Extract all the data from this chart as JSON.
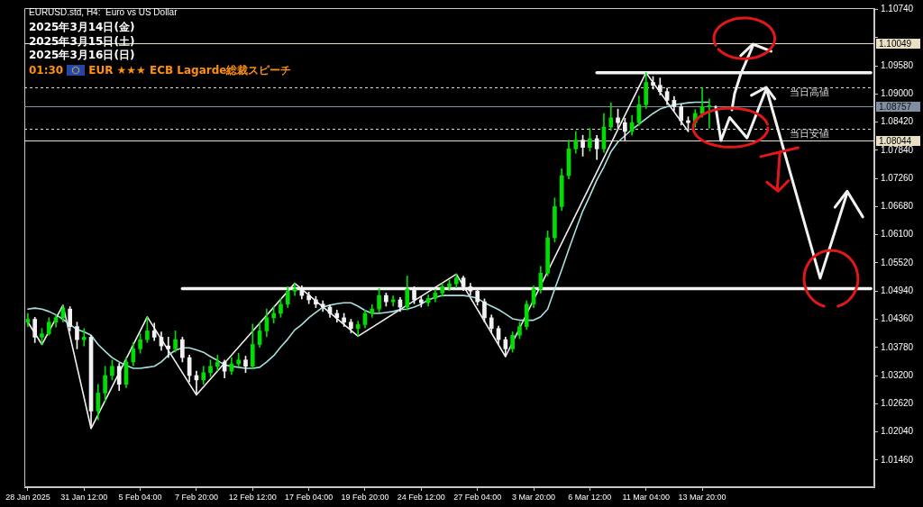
{
  "chart_data": {
    "type": "candlestick",
    "title": "EURUSD.std, H4:  Euro vs US Dollar",
    "annotations": [
      "2025年3月14日(金)",
      "2025年3月15日(土)",
      "2025年3月16日(日)",
      "01:30",
      "EUR ★★★ ECB Lagarde総裁スピーチ"
    ],
    "categories": [
      "28 Jan 2025",
      null,
      null,
      null,
      null,
      null,
      null,
      null,
      "31 Jan 12:00",
      null,
      null,
      null,
      null,
      null,
      null,
      null,
      "5 Feb 04:00",
      null,
      null,
      null,
      null,
      null,
      null,
      null,
      "7 Feb 20:00",
      null,
      null,
      null,
      null,
      null,
      null,
      null,
      "12 Feb 12:00",
      null,
      null,
      null,
      null,
      null,
      null,
      null,
      "17 Feb 04:00",
      null,
      null,
      null,
      null,
      null,
      null,
      null,
      "19 Feb 20:00",
      null,
      null,
      null,
      null,
      null,
      null,
      null,
      "24 Feb 12:00",
      null,
      null,
      null,
      null,
      null,
      null,
      null,
      "27 Feb 04:00",
      null,
      null,
      null,
      null,
      null,
      null,
      null,
      "3 Mar 20:00",
      null,
      null,
      null,
      null,
      null,
      null,
      null,
      "6 Mar 12:00",
      null,
      null,
      null,
      null,
      null,
      null,
      null,
      "11 Mar 04:00",
      null,
      null,
      null,
      null,
      null,
      null,
      null,
      "13 Mar 20:00",
      null,
      null,
      null,
      null,
      null,
      null,
      null,
      null,
      null,
      null,
      null,
      null,
      null,
      null,
      null,
      null,
      null,
      null,
      null,
      null,
      null,
      null,
      null,
      null
    ],
    "colors": [
      "#00dd00",
      "#f2f2f2",
      "#00dd00",
      "#00dd00",
      "#00dd00",
      "#00dd00",
      "#f2f2f2",
      "#f2f2f2",
      "#00dd00",
      "#f2f2f2",
      "#00dd00",
      "#00dd00",
      "#00dd00",
      "#f2f2f2",
      "#00dd00",
      "#00dd00",
      "#00dd00",
      "#00dd00",
      "#f2f2f2",
      "#f2f2f2",
      "#f2f2f2",
      "#00dd00",
      "#f2f2f2",
      "#f2f2f2",
      "#f2f2f2",
      "#00dd00",
      "#00dd00",
      "#00dd00",
      "#f2f2f2",
      "#00dd00",
      "#00dd00",
      "#f2f2f2",
      "#00dd00",
      "#00dd00",
      "#00dd00",
      "#00dd00",
      "#00dd00",
      "#00dd00",
      "#00dd00",
      "#f2f2f2",
      "#f2f2f2",
      "#f2f2f2",
      "#f2f2f2",
      "#f2f2f2",
      "#f2f2f2",
      "#f2f2f2",
      "#f2f2f2",
      "#00dd00",
      "#00dd00",
      "#00dd00",
      "#00dd00",
      "#f2f2f2",
      "#00dd00",
      "#f2f2f2",
      "#00dd00",
      "#f2f2f2",
      "#f2f2f2",
      "#00dd00",
      "#00dd00",
      "#00dd00",
      "#00dd00",
      "#00dd00",
      "#f2f2f2",
      "#f2f2f2",
      "#f2f2f2",
      "#f2f2f2",
      "#f2f2f2",
      "#f2f2f2",
      "#f2f2f2",
      "#00dd00",
      "#00dd00",
      "#00dd00",
      "#00dd00",
      "#00dd00",
      "#00dd00",
      "#00dd00",
      "#00dd00",
      "#00dd00",
      "#00dd00",
      "#f2f2f2",
      "#00dd00",
      "#f2f2f2",
      "#00dd00",
      "#00dd00",
      "#f2f2f2",
      "#f2f2f2",
      "#00dd00",
      "#00dd00",
      "#00dd00",
      "#f2f2f2",
      "#f2f2f2",
      "#f2f2f2",
      "#f2f2f2",
      "#f2f2f2",
      "#f2f2f2",
      "#00dd00",
      "#00dd00",
      "#00dd00",
      null,
      null,
      null,
      null,
      null,
      null,
      null,
      null,
      null,
      null,
      null,
      null,
      null,
      null,
      null,
      null,
      null,
      null,
      null,
      null,
      null,
      null,
      null
    ],
    "ohlc": [
      [
        1.043,
        1.0448,
        1.0421,
        1.0436
      ],
      [
        1.0436,
        1.044,
        1.0388,
        1.0399
      ],
      [
        1.0399,
        1.0417,
        1.0384,
        1.0406
      ],
      [
        1.0406,
        1.0439,
        1.0403,
        1.043
      ],
      [
        1.043,
        1.0445,
        1.042,
        1.0439
      ],
      [
        1.0439,
        1.0465,
        1.043,
        1.0457
      ],
      [
        1.0457,
        1.0462,
        1.0412,
        1.0421
      ],
      [
        1.0421,
        1.043,
        1.0375,
        1.0394
      ],
      [
        1.0394,
        1.0417,
        1.0381,
        1.0399
      ],
      [
        1.0399,
        1.0403,
        1.0211,
        1.0247
      ],
      [
        1.0247,
        1.0302,
        1.0229,
        1.0284
      ],
      [
        1.0284,
        1.0339,
        1.0266,
        1.032
      ],
      [
        1.032,
        1.0352,
        1.0311,
        1.0339
      ],
      [
        1.0339,
        1.0345,
        1.0289,
        1.0302
      ],
      [
        1.0302,
        1.0357,
        1.0295,
        1.0348
      ],
      [
        1.0348,
        1.0388,
        1.034,
        1.0375
      ],
      [
        1.0375,
        1.0406,
        1.0366,
        1.0394
      ],
      [
        1.0394,
        1.0441,
        1.0388,
        1.0412
      ],
      [
        1.0412,
        1.0428,
        1.0392,
        1.0399
      ],
      [
        1.0399,
        1.041,
        1.0372,
        1.0381
      ],
      [
        1.0381,
        1.0399,
        1.0357,
        1.0375
      ],
      [
        1.0375,
        1.0412,
        1.0368,
        1.0394
      ],
      [
        1.0394,
        1.0399,
        1.0348,
        1.0357
      ],
      [
        1.0357,
        1.0362,
        1.0307,
        1.032
      ],
      [
        1.032,
        1.0329,
        1.028,
        1.0311
      ],
      [
        1.0311,
        1.0339,
        1.0302,
        1.0326
      ],
      [
        1.0326,
        1.0352,
        1.0318,
        1.0339
      ],
      [
        1.0339,
        1.0362,
        1.033,
        1.0348
      ],
      [
        1.0348,
        1.0352,
        1.0315,
        1.0329
      ],
      [
        1.0329,
        1.0357,
        1.0322,
        1.0344
      ],
      [
        1.0344,
        1.0366,
        1.0338,
        1.0352
      ],
      [
        1.0352,
        1.036,
        1.0326,
        1.0339
      ],
      [
        1.0339,
        1.0426,
        1.0335,
        1.0384
      ],
      [
        1.0384,
        1.043,
        1.0378,
        1.0412
      ],
      [
        1.0412,
        1.0457,
        1.04,
        1.0439
      ],
      [
        1.0439,
        1.0463,
        1.0428,
        1.0448
      ],
      [
        1.0448,
        1.0479,
        1.044,
        1.0467
      ],
      [
        1.0467,
        1.0503,
        1.046,
        1.0494
      ],
      [
        1.0494,
        1.051,
        1.0485,
        1.0498
      ],
      [
        1.0498,
        1.0505,
        1.0478,
        1.0485
      ],
      [
        1.0485,
        1.0492,
        1.0468,
        1.0476
      ],
      [
        1.0476,
        1.0483,
        1.046,
        1.0467
      ],
      [
        1.0467,
        1.0474,
        1.0452,
        1.0461
      ],
      [
        1.0461,
        1.0466,
        1.044,
        1.0448
      ],
      [
        1.0448,
        1.0455,
        1.043,
        1.0439
      ],
      [
        1.0439,
        1.0448,
        1.0421,
        1.043
      ],
      [
        1.043,
        1.0436,
        1.0408,
        1.0417
      ],
      [
        1.0417,
        1.0432,
        1.0401,
        1.0425
      ],
      [
        1.0425,
        1.0455,
        1.0418,
        1.0448
      ],
      [
        1.0448,
        1.0466,
        1.044,
        1.0457
      ],
      [
        1.0457,
        1.0499,
        1.045,
        1.0485
      ],
      [
        1.0485,
        1.049,
        1.0463,
        1.0472
      ],
      [
        1.0472,
        1.0484,
        1.0463,
        1.0476
      ],
      [
        1.0476,
        1.0481,
        1.0452,
        1.0461
      ],
      [
        1.0461,
        1.0525,
        1.0455,
        1.0498
      ],
      [
        1.0498,
        1.0503,
        1.0468,
        1.0476
      ],
      [
        1.0476,
        1.0483,
        1.0461,
        1.047
      ],
      [
        1.047,
        1.0486,
        1.0463,
        1.0479
      ],
      [
        1.0479,
        1.0497,
        1.0472,
        1.049
      ],
      [
        1.049,
        1.051,
        1.0483,
        1.0503
      ],
      [
        1.0503,
        1.0517,
        1.0495,
        1.0509
      ],
      [
        1.0509,
        1.0529,
        1.0501,
        1.0521
      ],
      [
        1.0521,
        1.0525,
        1.0495,
        1.0503
      ],
      [
        1.0503,
        1.051,
        1.0486,
        1.0494
      ],
      [
        1.0494,
        1.0499,
        1.0465,
        1.0472
      ],
      [
        1.0472,
        1.0478,
        1.043,
        1.0439
      ],
      [
        1.0439,
        1.0445,
        1.0408,
        1.0417
      ],
      [
        1.0417,
        1.0422,
        1.0385,
        1.0394
      ],
      [
        1.0394,
        1.0399,
        1.0359,
        1.0375
      ],
      [
        1.0375,
        1.041,
        1.0368,
        1.0403
      ],
      [
        1.0403,
        1.043,
        1.0396,
        1.0421
      ],
      [
        1.0421,
        1.0474,
        1.0415,
        1.0467
      ],
      [
        1.0467,
        1.0505,
        1.046,
        1.0498
      ],
      [
        1.0498,
        1.0545,
        1.049,
        1.0531
      ],
      [
        1.0531,
        1.0618,
        1.0525,
        1.0604
      ],
      [
        1.0604,
        1.0686,
        1.0595,
        1.0668
      ],
      [
        1.0668,
        1.0746,
        1.066,
        1.0732
      ],
      [
        1.0732,
        1.0805,
        1.0725,
        1.0787
      ],
      [
        1.0787,
        1.0823,
        1.0778,
        1.0805
      ],
      [
        1.0805,
        1.0815,
        1.0772,
        1.079
      ],
      [
        1.079,
        1.0829,
        1.0782,
        1.0808
      ],
      [
        1.0808,
        1.0815,
        1.0765,
        1.0787
      ],
      [
        1.0787,
        1.086,
        1.078,
        1.0832
      ],
      [
        1.0832,
        1.0882,
        1.0825,
        1.0851
      ],
      [
        1.0851,
        1.0869,
        1.083,
        1.0841
      ],
      [
        1.0841,
        1.085,
        1.0805,
        1.0823
      ],
      [
        1.0823,
        1.0856,
        1.0815,
        1.0841
      ],
      [
        1.0841,
        1.0896,
        1.0835,
        1.0878
      ],
      [
        1.0878,
        1.0944,
        1.087,
        1.0924
      ],
      [
        1.0924,
        1.0936,
        1.091,
        1.0918
      ],
      [
        1.0918,
        1.0933,
        1.0898,
        1.0905
      ],
      [
        1.0905,
        1.0912,
        1.0878,
        1.0887
      ],
      [
        1.0887,
        1.0895,
        1.0865,
        1.0874
      ],
      [
        1.0874,
        1.088,
        1.0836,
        1.0845
      ],
      [
        1.0845,
        1.0853,
        1.0823,
        1.0841
      ],
      [
        1.0841,
        1.0868,
        1.0832,
        1.086
      ],
      [
        1.086,
        1.0913,
        1.0852,
        1.0874
      ],
      [
        1.0874,
        1.089,
        1.083,
        1.0876
      ],
      null,
      null,
      null,
      null,
      null,
      null,
      null,
      null,
      null,
      null,
      null,
      null,
      null,
      null,
      null,
      null,
      null,
      null,
      null,
      null,
      null,
      null,
      null
    ],
    "series": [
      {
        "type": "line",
        "color": "#a8e0e0",
        "values": [
          1.0457,
          1.0459,
          1.0457,
          1.0452,
          1.0445,
          1.0436,
          1.0425,
          1.0415,
          1.041,
          1.0403,
          1.0384,
          1.037,
          1.0357,
          1.0348,
          1.0341,
          1.0335,
          1.0335,
          1.0337,
          1.0339,
          1.0348,
          1.0362,
          1.0372,
          1.0377,
          1.0377,
          1.0373,
          1.0368,
          1.0359,
          1.0351,
          1.0342,
          1.0339,
          1.0337,
          1.0335,
          1.0335,
          1.0337,
          1.0348,
          1.0361,
          1.0379,
          1.0395,
          1.0414,
          1.0425,
          1.0439,
          1.045,
          1.0461,
          1.0465,
          1.0468,
          1.047,
          1.047,
          1.0463,
          1.0454,
          1.0448,
          1.0448,
          1.045,
          1.0452,
          1.0456,
          1.0457,
          1.0461,
          1.0467,
          1.0476,
          1.0481,
          1.0485,
          1.0485,
          1.0485,
          1.0485,
          1.0483,
          1.0479,
          1.047,
          1.0463,
          1.0456,
          1.0447,
          1.0437,
          1.0434,
          1.0434,
          1.0434,
          1.0441,
          1.0457,
          1.0498,
          1.0538,
          1.058,
          1.062,
          1.0659,
          1.069,
          1.0723,
          1.075,
          1.0781,
          1.0801,
          1.0814,
          1.0827,
          1.0838,
          1.0849,
          1.086,
          1.0869,
          1.0874,
          1.0878,
          1.088,
          1.0882,
          1.0883,
          1.0883,
          1.0883,
          null,
          null,
          null,
          null,
          null,
          null,
          null,
          null,
          null,
          null,
          null,
          null,
          null,
          null,
          null,
          null,
          null,
          null,
          null,
          null,
          null,
          null,
          null
        ]
      },
      {
        "type": "line",
        "color": "#f0f0f0",
        "values": [
          1.043,
          null,
          1.0384,
          null,
          null,
          1.0465,
          null,
          null,
          null,
          1.0211,
          null,
          null,
          null,
          null,
          null,
          null,
          null,
          1.0441,
          null,
          null,
          null,
          null,
          null,
          null,
          1.028,
          null,
          null,
          null,
          null,
          null,
          null,
          null,
          null,
          null,
          null,
          null,
          null,
          null,
          1.051,
          null,
          null,
          null,
          null,
          null,
          null,
          null,
          null,
          1.0401,
          null,
          null,
          null,
          null,
          null,
          null,
          null,
          null,
          null,
          null,
          null,
          null,
          null,
          1.0529,
          null,
          null,
          null,
          null,
          null,
          null,
          1.0359,
          null,
          null,
          null,
          null,
          null,
          null,
          null,
          null,
          null,
          null,
          null,
          null,
          null,
          null,
          null,
          null,
          null,
          null,
          null,
          1.0944,
          null,
          null,
          null,
          null,
          null,
          1.0823,
          null,
          null,
          null,
          null,
          null,
          null,
          null,
          null,
          null,
          null,
          null,
          null,
          null,
          null,
          null,
          null,
          null,
          null,
          null,
          null,
          null,
          null,
          null,
          null,
          null,
          null
        ]
      },
      {
        "type": "line",
        "color": "#f4f4f4",
        "values": [
          null,
          null,
          null,
          null,
          null,
          null,
          null,
          null,
          null,
          null,
          null,
          null,
          null,
          null,
          null,
          null,
          null,
          null,
          null,
          null,
          null,
          null,
          null,
          null,
          null,
          null,
          null,
          null,
          null,
          null,
          null,
          null,
          null,
          null,
          null,
          null,
          null,
          null,
          null,
          null,
          null,
          null,
          null,
          null,
          null,
          null,
          null,
          null,
          null,
          null,
          null,
          null,
          null,
          null,
          null,
          null,
          null,
          null,
          null,
          null,
          null,
          null,
          null,
          null,
          null,
          null,
          null,
          null,
          null,
          null,
          null,
          null,
          null,
          null,
          null,
          null,
          null,
          null,
          null,
          null,
          null,
          1.0944,
          null,
          null,
          null,
          null,
          null,
          null,
          null,
          null,
          null,
          null,
          null,
          null,
          null,
          null,
          null,
          null,
          null,
          null,
          null,
          null,
          null,
          null,
          null,
          null,
          null,
          null,
          null,
          null,
          null,
          null,
          null,
          null,
          null,
          null,
          null,
          null,
          null,
          null,
          1.0944
        ]
      },
      {
        "type": "line",
        "color": "#f4f4f4",
        "values": [
          null,
          null,
          null,
          null,
          null,
          null,
          null,
          null,
          null,
          null,
          null,
          null,
          null,
          null,
          null,
          null,
          null,
          null,
          null,
          null,
          null,
          null,
          1.0499,
          null,
          null,
          null,
          null,
          null,
          null,
          null,
          null,
          null,
          null,
          null,
          null,
          null,
          null,
          null,
          null,
          null,
          null,
          null,
          null,
          null,
          null,
          null,
          null,
          null,
          null,
          null,
          null,
          null,
          null,
          null,
          null,
          null,
          null,
          null,
          null,
          null,
          null,
          null,
          null,
          null,
          null,
          null,
          null,
          null,
          null,
          null,
          null,
          null,
          null,
          null,
          null,
          null,
          null,
          null,
          null,
          null,
          null,
          null,
          null,
          null,
          null,
          null,
          null,
          null,
          null,
          null,
          null,
          null,
          null,
          null,
          null,
          null,
          null,
          null,
          null,
          null,
          null,
          null,
          null,
          null,
          null,
          null,
          null,
          null,
          null,
          null,
          null,
          null,
          null,
          null,
          null,
          null,
          null,
          null,
          null,
          null,
          1.0499
        ]
      }
    ],
    "ylim": [
      1.009,
      1.1077
    ],
    "yticks": [
      {
        "value": 1.0146,
        "label": "1.01460"
      },
      {
        "value": 1.0204,
        "label": "1.02040"
      },
      {
        "value": 1.0262,
        "label": "1.02620"
      },
      {
        "value": 1.032,
        "label": "1.03200"
      },
      {
        "value": 1.0378,
        "label": "1.03780"
      },
      {
        "value": 1.0436,
        "label": "1.04360"
      },
      {
        "value": 1.0494,
        "label": "1.04940"
      },
      {
        "value": 1.0552,
        "label": "1.05520"
      },
      {
        "value": 1.061,
        "label": "1.06100"
      },
      {
        "value": 1.0668,
        "label": "1.06680"
      },
      {
        "value": 1.0726,
        "label": "1.07260"
      },
      {
        "value": 1.0784,
        "label": "1.07840"
      },
      {
        "value": 1.0842,
        "label": "1.08420"
      },
      {
        "value": 1.09,
        "label": "1.09000"
      },
      {
        "value": 1.0958,
        "label": "1.09580"
      },
      {
        "value": 1.1016,
        "label": null
      },
      {
        "value": 1.1074,
        "label": "1.10740"
      }
    ],
    "ref_lines": [
      {
        "axis": "y",
        "value": 1.10049,
        "label": "1.10049",
        "color": "#e8dfc4"
      },
      {
        "axis": "y",
        "value": 1.08757,
        "label": "1.08757",
        "color": "#7f8fa0"
      },
      {
        "axis": "y",
        "value": 1.08044,
        "label": "1.08044",
        "color": "#e8dfc4"
      },
      {
        "axis": "y",
        "value": 1.0913,
        "label": "当日高値",
        "color": "#d8d8d8",
        "line_style": "dashed"
      },
      {
        "axis": "y",
        "value": 1.0829,
        "label": "当日安値",
        "color": "#d8d8d8",
        "line_style": "dashed"
      }
    ],
    "grid": false,
    "legend": false,
    "marker": "none"
  }
}
